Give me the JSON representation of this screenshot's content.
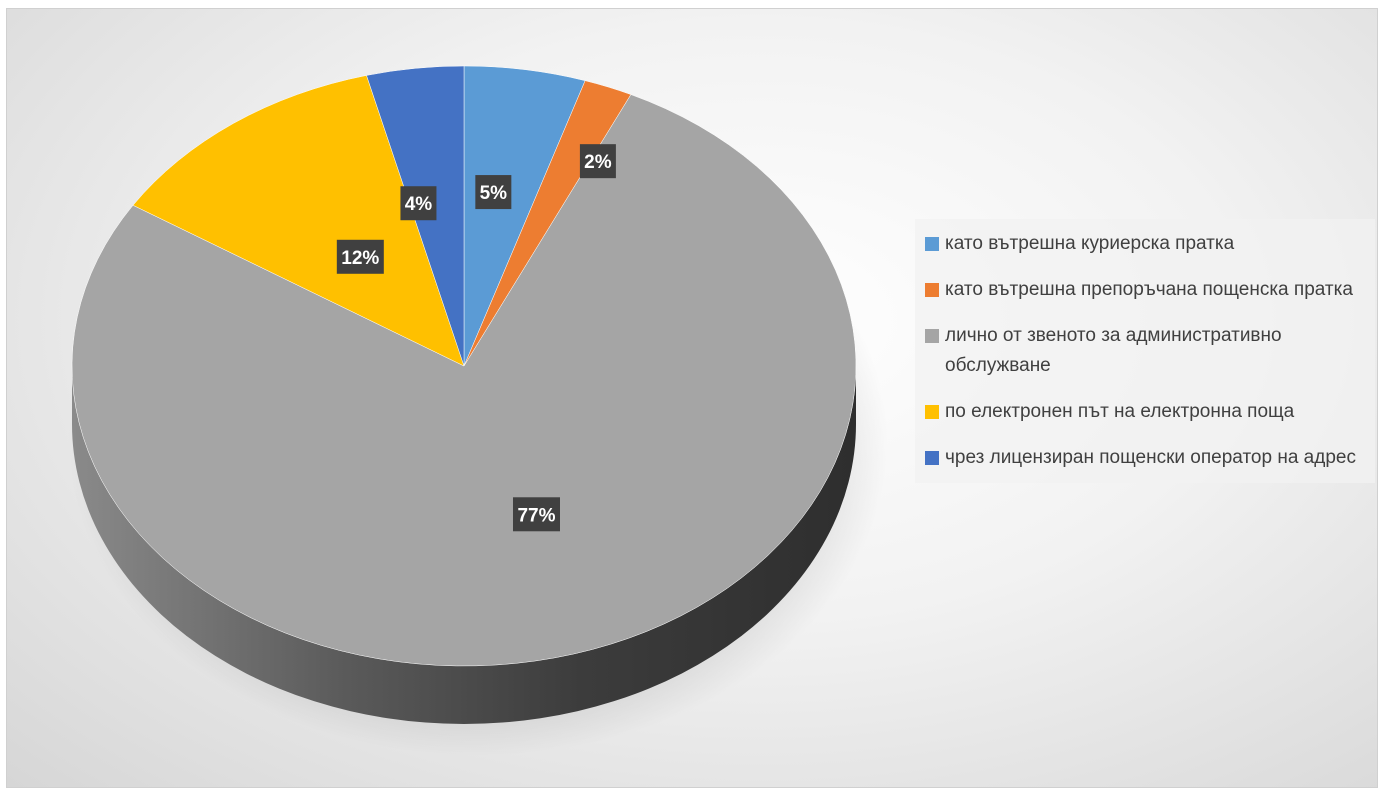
{
  "chart_data": {
    "type": "pie",
    "title": "",
    "three_d": true,
    "legend_position": "right",
    "categories": [
      "като вътрешна куриерска пратка",
      "като вътрешна препоръчана пощенска пратка",
      "лично от звеното за административно обслужване",
      "по електронен път на електронна поща",
      "чрез лицензиран пощенски оператор на адрес"
    ],
    "values": [
      5,
      2,
      77,
      12,
      4
    ],
    "labels": [
      "5%",
      "2%",
      "77%",
      "12%",
      "4%"
    ],
    "colors": [
      "#5B9BD5",
      "#ED7D31",
      "#A5A5A5",
      "#FFC000",
      "#4472C4"
    ]
  }
}
